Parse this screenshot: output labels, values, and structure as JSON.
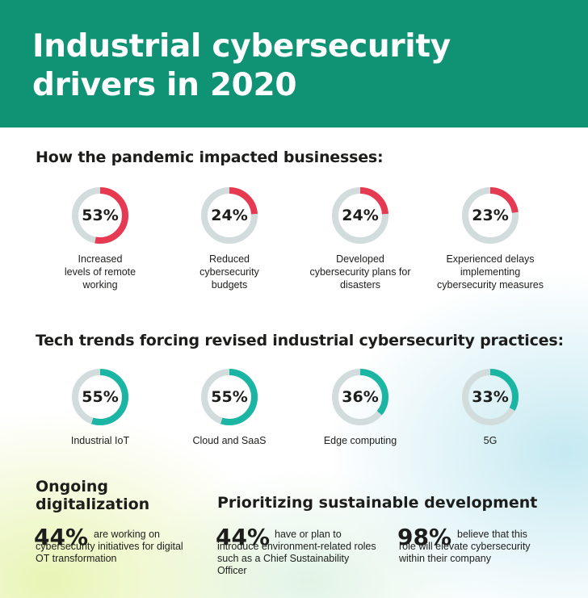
{
  "header": {
    "title": "Industrial cybersecurity drivers in 2020",
    "background_color": "#0f9374"
  },
  "pandemic": {
    "heading": "How the pandemic impacted businesses:",
    "accent_color": "#e53a51",
    "items": [
      {
        "value": "53%",
        "percent": 53,
        "label": "Increased levels of remote working"
      },
      {
        "value": "24%",
        "percent": 24,
        "label": "Reduced cybersecurity budgets"
      },
      {
        "value": "24%",
        "percent": 24,
        "label": "Developed cybersecurity plans for disasters"
      },
      {
        "value": "23%",
        "percent": 23,
        "label": "Experienced delays implementing cybersecurity measures"
      }
    ]
  },
  "tech": {
    "heading": "Tech trends forcing revised industrial cybersecurity practices:",
    "accent_color": "#1ab5a3",
    "items": [
      {
        "value": "55%",
        "percent": 55,
        "label": "Industrial IoT"
      },
      {
        "value": "55%",
        "percent": 55,
        "label": "Cloud and SaaS"
      },
      {
        "value": "36%",
        "percent": 36,
        "label": "Edge computing"
      },
      {
        "value": "33%",
        "percent": 33,
        "label": "5G"
      }
    ]
  },
  "ring_track_color": "#d2dcdc",
  "digitalization": {
    "title": "Ongoing digitalization",
    "stat": "44%",
    "text": "are working on cybersecurity initiatives for digital OT transformation"
  },
  "sustainable": {
    "title": "Prioritizing sustainable development",
    "stat1": "44%",
    "text1": "have or plan to introduce environment-related roles such as a Chief Sustainability Officer",
    "stat2": "98%",
    "text2": "believe that this role will elevate cybersecurity within their company"
  }
}
